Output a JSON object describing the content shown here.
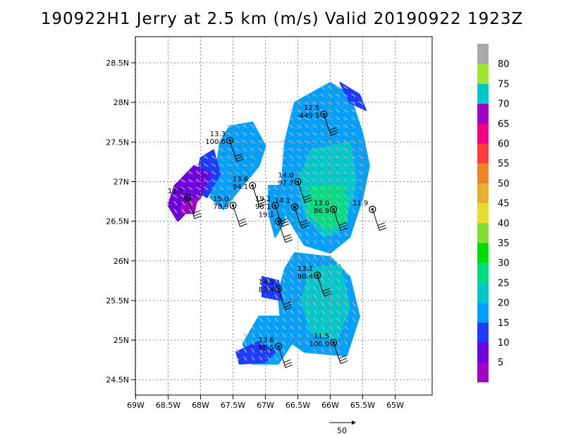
{
  "title": "190922H1 Jerry at 2.5 km (m/s) Valid 20190922  1923Z",
  "lat_ticks": [
    {
      "label": "28.5N",
      "lat": 28.5
    },
    {
      "label": "28N",
      "lat": 28.0
    },
    {
      "label": "27.5N",
      "lat": 27.5
    },
    {
      "label": "27N",
      "lat": 27.0
    },
    {
      "label": "26.5N",
      "lat": 26.5
    },
    {
      "label": "26N",
      "lat": 26.0
    },
    {
      "label": "25.5N",
      "lat": 25.5
    },
    {
      "label": "25N",
      "lat": 25.0
    },
    {
      "label": "24.5N",
      "lat": 24.5
    }
  ],
  "lon_ticks": [
    {
      "label": "69W",
      "lon": -69.0
    },
    {
      "label": "68.5W",
      "lon": -68.5
    },
    {
      "label": "68W",
      "lon": -68.0
    },
    {
      "label": "67.5W",
      "lon": -67.5
    },
    {
      "label": "67W",
      "lon": -67.0
    },
    {
      "label": "66.5W",
      "lon": -66.5
    },
    {
      "label": "66W",
      "lon": -66.0
    },
    {
      "label": "65.5W",
      "lon": -65.5
    },
    {
      "label": "65W",
      "lon": -65.0
    }
  ],
  "colorbar": {
    "labels": [
      "5",
      "10",
      "15",
      "20",
      "25",
      "30",
      "35",
      "40",
      "45",
      "50",
      "55",
      "60",
      "65",
      "70",
      "75",
      "80"
    ],
    "colors": [
      "#a000c8",
      "#6e00dc",
      "#1e3cff",
      "#00a0ff",
      "#00c8c8",
      "#00dc82",
      "#00dc00",
      "#82dc32",
      "#e6dc32",
      "#e6af2d",
      "#f08228",
      "#fa3c3c",
      "#f00082",
      "#a000c8",
      "#00c8c8",
      "#a0e632",
      "#aaaaaa"
    ]
  },
  "reference_vector_label": "50",
  "stations": [
    {
      "lon": -67.55,
      "lat": 27.52,
      "speed": "13.3",
      "pres": "100.6"
    },
    {
      "lon": -66.1,
      "lat": 27.85,
      "speed": "12.5",
      "pres": "-449.5"
    },
    {
      "lon": -68.2,
      "lat": 26.8,
      "speed": "13.7",
      "pres": ""
    },
    {
      "lon": -67.2,
      "lat": 26.95,
      "speed": "13.6",
      "pres": "94.1"
    },
    {
      "lon": -67.5,
      "lat": 26.7,
      "speed": "15.0",
      "pres": "78.9"
    },
    {
      "lon": -66.5,
      "lat": 27.0,
      "speed": "14.0",
      "pres": "97.7"
    },
    {
      "lon": -66.85,
      "lat": 26.7,
      "speed": "19.2",
      "pres": "98.1"
    },
    {
      "lon": -66.55,
      "lat": 26.68,
      "speed": "14.1",
      "pres": ""
    },
    {
      "lon": -66.8,
      "lat": 26.5,
      "speed": "19.1",
      "pres": ""
    },
    {
      "lon": -65.95,
      "lat": 26.65,
      "speed": "13.0",
      "pres": "86.9"
    },
    {
      "lon": -65.35,
      "lat": 26.65,
      "speed": "11.9",
      "pres": ""
    },
    {
      "lon": -66.2,
      "lat": 25.82,
      "speed": "13.1",
      "pres": "98.4"
    },
    {
      "lon": -66.8,
      "lat": 25.65,
      "speed": "14.0",
      "pres": "83.4"
    },
    {
      "lon": -66.8,
      "lat": 24.92,
      "speed": "13.6",
      "pres": "86.5"
    },
    {
      "lon": -65.95,
      "lat": 24.97,
      "speed": "11.5",
      "pres": "100.0"
    }
  ]
}
